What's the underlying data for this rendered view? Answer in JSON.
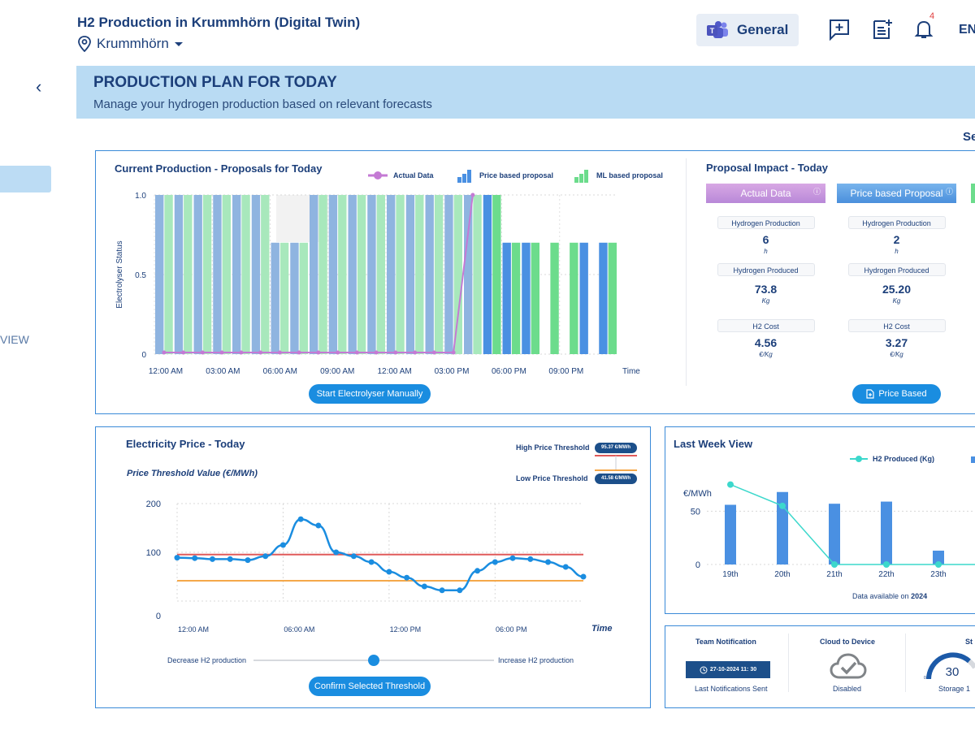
{
  "header": {
    "title": "H2 Production in Krummhörn (Digital Twin)",
    "location": "Krummhörn",
    "channel": "General",
    "notification_count": "4",
    "language": "EN"
  },
  "sidebar": {
    "view_label": "VIEW"
  },
  "banner": {
    "title": "PRODUCTION PLAN FOR TODAY",
    "subtitle": "Manage your hydrogen production based on relevant forecasts"
  },
  "partial_right_label": "Se",
  "production": {
    "title": "Current Production - Proposals for Today",
    "legend": [
      "Actual Data",
      "Price based proposal",
      "ML based proposal"
    ],
    "ylabel": "Electrolyser  Status",
    "xlabel": "Time",
    "button": "Start Electrolyser Manually"
  },
  "impact": {
    "title": "Proposal Impact - Today",
    "columns": [
      {
        "header": "Actual Data",
        "production": "6",
        "production_unit": "h",
        "produced": "73.8",
        "produced_unit": "Kg",
        "cost": "4.56",
        "cost_unit": "€/Kg"
      },
      {
        "header": "Price based Proposal",
        "production": "2",
        "production_unit": "h",
        "produced": "25.20",
        "produced_unit": "Kg",
        "cost": "3.27",
        "cost_unit": "€/Kg"
      }
    ],
    "labels": {
      "production": "Hydrogen Production",
      "produced": "Hydrogen Produced",
      "cost": "H2 Cost"
    },
    "button": "Price Based"
  },
  "price": {
    "title": "Electricity Price - Today",
    "subtitle": "Price Threshold Value (€/MWh)",
    "high_label": "High Price Threshold",
    "high_value": "95.37 €/MWh",
    "low_label": "Low Price Threshold",
    "low_value": "41.58 €/MWh",
    "xlabel": "Time",
    "decrease_label": "Decrease H2 production",
    "increase_label": "Increase H2 production",
    "button": "Confirm Selected Threshold",
    "slider_value": 0.5
  },
  "lastweek": {
    "title": "Last Week View",
    "legend": "H2 Produced (Kg)",
    "ylabel": "€/MWh",
    "footer_prefix": "Data available on ",
    "footer_year": "2024"
  },
  "bottom": {
    "team_title": "Team Notification",
    "team_date": "27-10-2024  11: 30",
    "team_caption": "Last Notifications Sent",
    "cloud_title": "Cloud to Device",
    "cloud_caption": "Disabled",
    "storage_title": "St",
    "storage_value": "30",
    "storage_caption": "Storage 1",
    "storage_min": "0"
  },
  "colors": {
    "primary": "#1a8de0",
    "dark_blue": "#1c3f7a",
    "actual": "#c47ad4",
    "price_bar": "#4a90e2",
    "price_bar_light": "#8fb4e0",
    "ml_bar": "#6cdc8c",
    "ml_bar_light": "#a8e8bc",
    "high_threshold": "#e05a5a",
    "low_threshold": "#f5a84a",
    "teal": "#3cd8cc"
  },
  "chart_data": [
    {
      "type": "bar",
      "title": "Current Production - Proposals for Today",
      "ylabel": "Electrolyser  Status",
      "xlabel": "Time",
      "ylim": [
        0,
        1
      ],
      "yticks": [
        "1.0",
        "0.5",
        "0"
      ],
      "xticks": [
        "12:00 AM",
        "03:00 AM",
        "06:00 AM",
        "09:00 AM",
        "12:00 AM",
        "03:00 PM",
        "06:00 PM",
        "09:00 PM"
      ],
      "hours": [
        0,
        1,
        2,
        3,
        4,
        5,
        6,
        7,
        8,
        9,
        10,
        11,
        12,
        13,
        14,
        15,
        16,
        17,
        18,
        19,
        20,
        21,
        22,
        23
      ],
      "series": [
        {
          "name": "Price based proposal",
          "values": [
            1,
            1,
            1,
            1,
            1,
            1,
            0.7,
            0.7,
            1,
            1,
            1,
            1,
            1,
            1,
            1,
            1,
            1,
            1,
            0.7,
            0.7,
            0,
            0,
            0.7,
            0.7
          ]
        },
        {
          "name": "ML based proposal",
          "values": [
            1,
            1,
            1,
            1,
            1,
            1,
            0.7,
            0.7,
            1,
            1,
            1,
            1,
            1,
            1,
            1,
            1,
            1,
            1,
            0.7,
            0.7,
            0.7,
            0.7,
            0,
            0.7
          ]
        },
        {
          "name": "Actual Data",
          "values": [
            0,
            0,
            0,
            0,
            0,
            0,
            0,
            0,
            0,
            0,
            0,
            0,
            0,
            0,
            0,
            0,
            1
          ]
        }
      ]
    },
    {
      "type": "line",
      "title": "Electricity Price - Today",
      "ylim": [
        0,
        200
      ],
      "yticks": [
        200,
        100,
        0
      ],
      "xticks": [
        "12:00 AM",
        "06:00 AM",
        "12:00 PM",
        "06:00 PM"
      ],
      "x": [
        0,
        1,
        2,
        3,
        4,
        5,
        6,
        7,
        8,
        9,
        10,
        11,
        12,
        13,
        14,
        15,
        16,
        17,
        18,
        19,
        20,
        21,
        22,
        23
      ],
      "series": [
        {
          "name": "Price",
          "values": [
            89,
            88,
            86,
            86,
            84,
            92,
            115,
            168,
            155,
            100,
            92,
            80,
            60,
            48,
            30,
            22,
            22,
            62,
            80,
            88,
            86,
            80,
            70,
            50
          ]
        }
      ],
      "thresholds": {
        "high": 95.37,
        "low": 41.58
      }
    },
    {
      "type": "bar",
      "title": "Last Week View",
      "ylabel": "€/MWh",
      "categories": [
        "19th",
        "20th",
        "21th",
        "22th",
        "23th"
      ],
      "ylim": [
        0,
        80
      ],
      "yticks": [
        50,
        0
      ],
      "bar_values": [
        56,
        68,
        57,
        59,
        13
      ],
      "series": [
        {
          "name": "H2 Produced (Kg)",
          "values": [
            75,
            55,
            0,
            0,
            0
          ]
        }
      ]
    }
  ]
}
